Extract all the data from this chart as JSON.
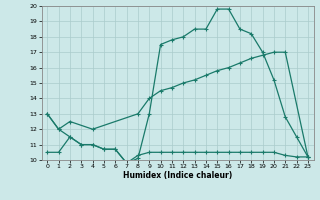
{
  "xlabel": "Humidex (Indice chaleur)",
  "bg_color": "#cce8e8",
  "grid_color": "#aacccc",
  "line_color": "#1a7a6a",
  "xlim": [
    -0.5,
    23.5
  ],
  "ylim": [
    10,
    20
  ],
  "xticks": [
    0,
    1,
    2,
    3,
    4,
    5,
    6,
    7,
    8,
    9,
    10,
    11,
    12,
    13,
    14,
    15,
    16,
    17,
    18,
    19,
    20,
    21,
    22,
    23
  ],
  "yticks": [
    10,
    11,
    12,
    13,
    14,
    15,
    16,
    17,
    18,
    19,
    20
  ],
  "line1_x": [
    0,
    1,
    2,
    3,
    4,
    5,
    6,
    7,
    8,
    9,
    10,
    11,
    12,
    13,
    14,
    15,
    16,
    17,
    18,
    19,
    20,
    21,
    22,
    23
  ],
  "line1_y": [
    13,
    12,
    11.5,
    11,
    11,
    10.7,
    10.7,
    9.8,
    10.1,
    13,
    17.5,
    17.8,
    18,
    18.5,
    18.5,
    19.8,
    19.8,
    18.5,
    18.2,
    17,
    15.2,
    12.8,
    11.5,
    10.2
  ],
  "line2_x": [
    0,
    1,
    2,
    4,
    8,
    9,
    10,
    11,
    12,
    13,
    14,
    15,
    16,
    17,
    18,
    19,
    20,
    21,
    23
  ],
  "line2_y": [
    13,
    12,
    12.5,
    12,
    13,
    14,
    14.5,
    14.7,
    15,
    15.2,
    15.5,
    15.8,
    16,
    16.3,
    16.6,
    16.8,
    17,
    17,
    10.2
  ],
  "line3_x": [
    0,
    1,
    2,
    3,
    4,
    5,
    6,
    7,
    8,
    9,
    10,
    11,
    12,
    13,
    14,
    15,
    16,
    17,
    18,
    19,
    20,
    21,
    22,
    23
  ],
  "line3_y": [
    10.5,
    10.5,
    11.5,
    11,
    11,
    10.7,
    10.7,
    9.8,
    10.3,
    10.5,
    10.5,
    10.5,
    10.5,
    10.5,
    10.5,
    10.5,
    10.5,
    10.5,
    10.5,
    10.5,
    10.5,
    10.3,
    10.2,
    10.2
  ]
}
